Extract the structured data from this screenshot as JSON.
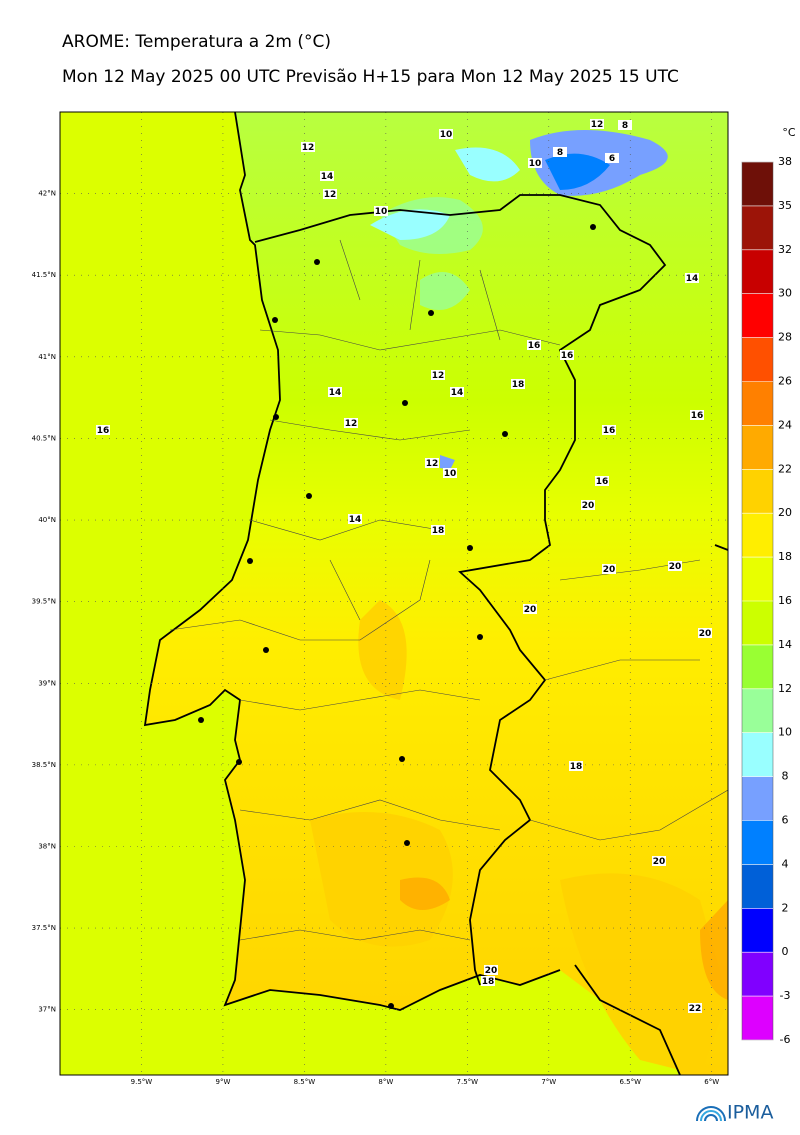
{
  "chart_data": {
    "type": "map",
    "title": "AROME: Temperatura a 2m (°C)",
    "subtitle": "Mon 12 May 2025 00 UTC Previsão H+15 para Mon 12 May 2025 15 UTC",
    "xlim": [
      -10,
      -5.9
    ],
    "ylim": [
      36.6,
      42.5
    ],
    "xticks": [
      {
        "value": -9.5,
        "label": "9.5°W"
      },
      {
        "value": -9,
        "label": "9°W"
      },
      {
        "value": -8.5,
        "label": "8.5°W"
      },
      {
        "value": -8,
        "label": "8°W"
      },
      {
        "value": -7.5,
        "label": "7.5°W"
      },
      {
        "value": -7,
        "label": "7°W"
      },
      {
        "value": -6.5,
        "label": "6.5°W"
      },
      {
        "value": -6,
        "label": "6°W"
      }
    ],
    "yticks": [
      {
        "value": 42,
        "label": "42°N"
      },
      {
        "value": 41.5,
        "label": "41.5°N"
      },
      {
        "value": 41,
        "label": "41°N"
      },
      {
        "value": 40.5,
        "label": "40.5°N"
      },
      {
        "value": 40,
        "label": "40°N"
      },
      {
        "value": 39.5,
        "label": "39.5°N"
      },
      {
        "value": 39,
        "label": "39°N"
      },
      {
        "value": 38.5,
        "label": "38.5°N"
      },
      {
        "value": 38,
        "label": "38°N"
      },
      {
        "value": 37.5,
        "label": "37.5°N"
      },
      {
        "value": 37,
        "label": "37°N"
      }
    ],
    "colorbar": {
      "unit": "°C",
      "ticks": [
        38,
        35,
        32,
        30,
        28,
        26,
        24,
        22,
        20,
        18,
        16,
        14,
        12,
        10,
        8,
        6,
        4,
        2,
        0,
        -3,
        -6
      ],
      "colors": [
        "#6e1008",
        "#9c1408",
        "#c80000",
        "#ff0000",
        "#ff5000",
        "#ff8000",
        "#ffaa00",
        "#ffd200",
        "#ffee00",
        "#e8ff00",
        "#ccff00",
        "#99ff33",
        "#99ff99",
        "#99ffff",
        "#77a0ff",
        "#0080ff",
        "#0060d8",
        "#0000ff",
        "#8000ff",
        "#dd00ff"
      ]
    },
    "contour_labels": [
      10,
      12,
      8,
      12,
      10,
      8,
      6,
      14,
      12,
      10,
      14,
      16,
      16,
      12,
      18,
      14,
      14,
      16,
      16,
      12,
      16,
      12,
      10,
      16,
      20,
      14,
      18,
      20,
      20,
      20,
      20,
      18,
      20,
      20,
      18,
      22
    ],
    "logo": "IPMA"
  }
}
